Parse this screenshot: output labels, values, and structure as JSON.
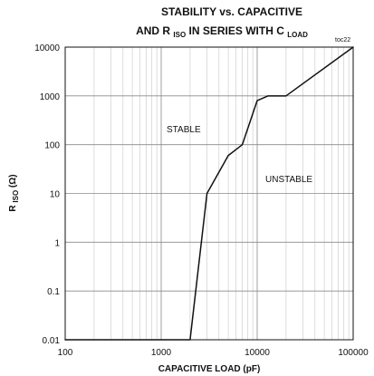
{
  "chart_data": {
    "type": "line",
    "title": {
      "line1": "STABILITY vs. CAPACITIVE",
      "line2": {
        "prefix": "AND R",
        "sub1": "ISO",
        "middle": " IN SERIES WITH C",
        "sub2": "LOAD"
      }
    },
    "source_tag": "toc22",
    "x_axis": {
      "label": "CAPACITIVE LOAD (pF)",
      "scale": "log",
      "range": [
        100,
        100000
      ],
      "ticks": [
        100,
        1000,
        10000,
        100000
      ],
      "tick_labels": [
        "100",
        "1000",
        "10000",
        "100000"
      ]
    },
    "y_axis": {
      "label": {
        "prefix": "R",
        "sub": "ISO",
        "suffix": " (Ω)"
      },
      "scale": "log",
      "range": [
        0.01,
        10000
      ],
      "ticks": [
        0.01,
        0.1,
        1,
        10,
        100,
        1000,
        10000
      ],
      "tick_labels": [
        "0.01",
        "0.1",
        "1",
        "10",
        "100",
        "1000",
        "10000"
      ]
    },
    "grid": {
      "major": true,
      "minor_x": true
    },
    "annotations": {
      "stable": "STABLE",
      "unstable": "UNSTABLE"
    },
    "series": [
      {
        "x": [
          100,
          2000,
          3000,
          5000,
          7000,
          10000,
          13000,
          20000,
          100000
        ],
        "y": [
          0.01,
          0.01,
          10,
          60,
          100,
          800,
          1000,
          1000,
          10000
        ]
      }
    ]
  }
}
